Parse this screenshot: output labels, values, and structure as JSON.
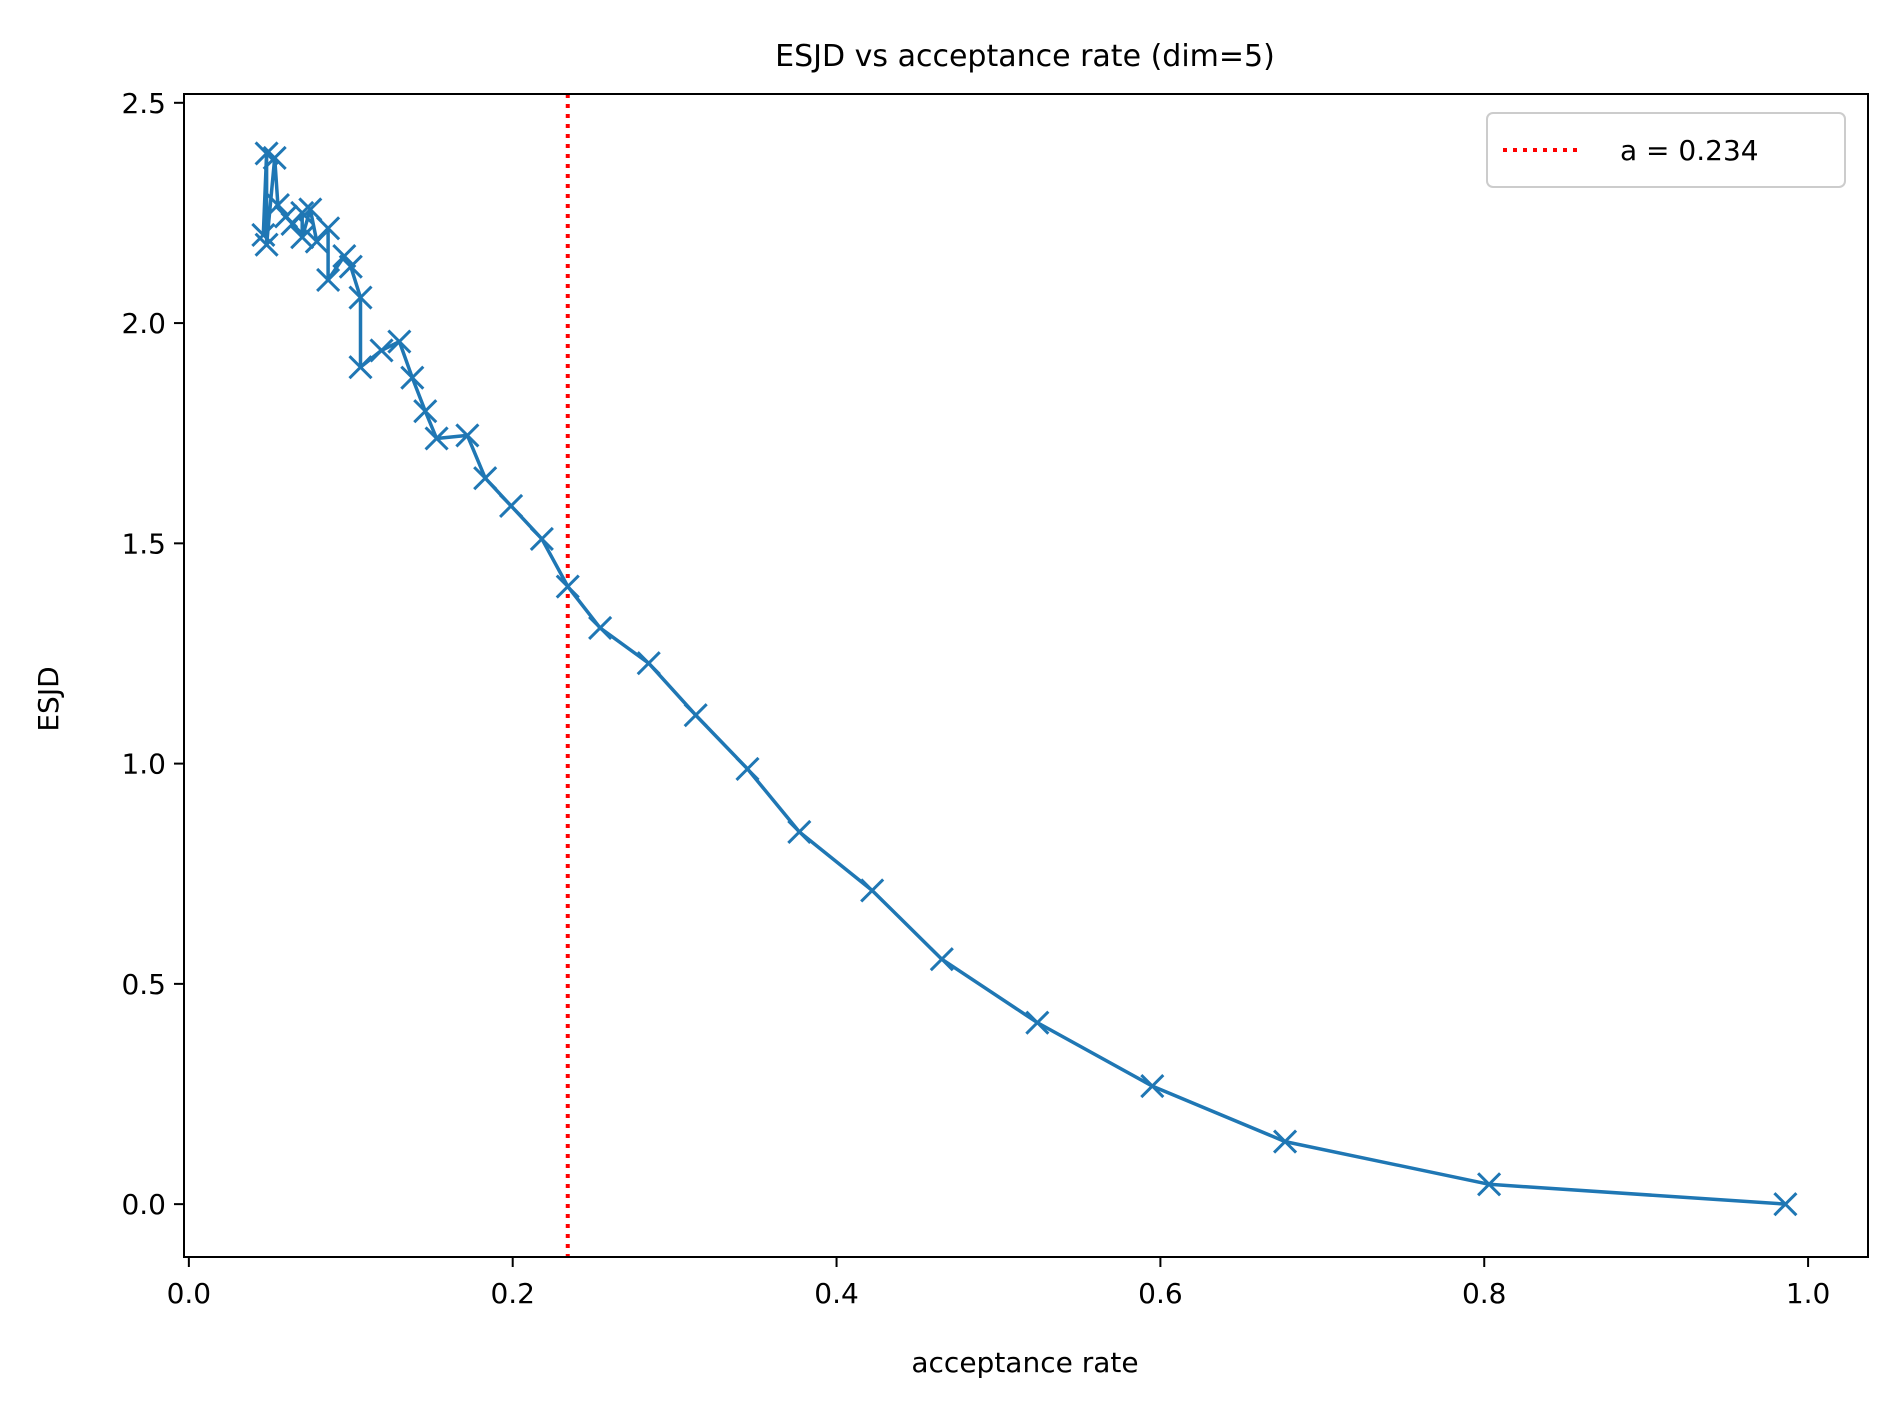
{
  "chart_data": {
    "type": "line",
    "title": "ESJD vs acceptance rate (dim=5)",
    "xlabel": "acceptance rate",
    "ylabel": "ESJD",
    "xlim": [
      -0.003,
      1.037
    ],
    "ylim": [
      -0.12,
      2.52
    ],
    "xticks": [
      0.0,
      0.2,
      0.4,
      0.6,
      0.8,
      1.0
    ],
    "xtick_labels": [
      "0.0",
      "0.2",
      "0.4",
      "0.6",
      "0.8",
      "1.0"
    ],
    "yticks": [
      0.0,
      0.5,
      1.0,
      1.5,
      2.0,
      2.5
    ],
    "ytick_labels": [
      "0.0",
      "0.5",
      "1.0",
      "1.5",
      "2.0",
      "2.5"
    ],
    "grid": false,
    "legend_position": "top-right",
    "series": [
      {
        "color": "#1f77b4",
        "marker": "x",
        "points": [
          [
            0.986,
            0.0
          ],
          [
            0.803,
            0.045
          ],
          [
            0.677,
            0.142
          ],
          [
            0.595,
            0.268
          ],
          [
            0.524,
            0.412
          ],
          [
            0.465,
            0.556
          ],
          [
            0.422,
            0.712
          ],
          [
            0.377,
            0.845
          ],
          [
            0.345,
            0.988
          ],
          [
            0.313,
            1.11
          ],
          [
            0.284,
            1.228
          ],
          [
            0.254,
            1.308
          ],
          [
            0.234,
            1.402
          ],
          [
            0.218,
            1.51
          ],
          [
            0.199,
            1.585
          ],
          [
            0.183,
            1.648
          ],
          [
            0.172,
            1.745
          ],
          [
            0.153,
            1.738
          ],
          [
            0.146,
            1.8
          ],
          [
            0.138,
            1.876
          ],
          [
            0.13,
            1.958
          ],
          [
            0.119,
            1.938
          ],
          [
            0.106,
            1.9
          ],
          [
            0.106,
            2.058
          ],
          [
            0.1,
            2.128
          ],
          [
            0.096,
            2.152
          ],
          [
            0.086,
            2.098
          ],
          [
            0.086,
            2.215
          ],
          [
            0.079,
            2.185
          ],
          [
            0.075,
            2.258
          ],
          [
            0.07,
            2.195
          ],
          [
            0.07,
            2.25
          ],
          [
            0.064,
            2.225
          ],
          [
            0.06,
            2.242
          ],
          [
            0.055,
            2.268
          ],
          [
            0.053,
            2.375
          ],
          [
            0.048,
            2.178
          ],
          [
            0.048,
            2.385
          ],
          [
            0.046,
            2.2
          ]
        ]
      }
    ],
    "reference_line": {
      "x": 0.234,
      "color": "#ff0000",
      "style": "dotted",
      "label": "a = 0.234"
    }
  }
}
